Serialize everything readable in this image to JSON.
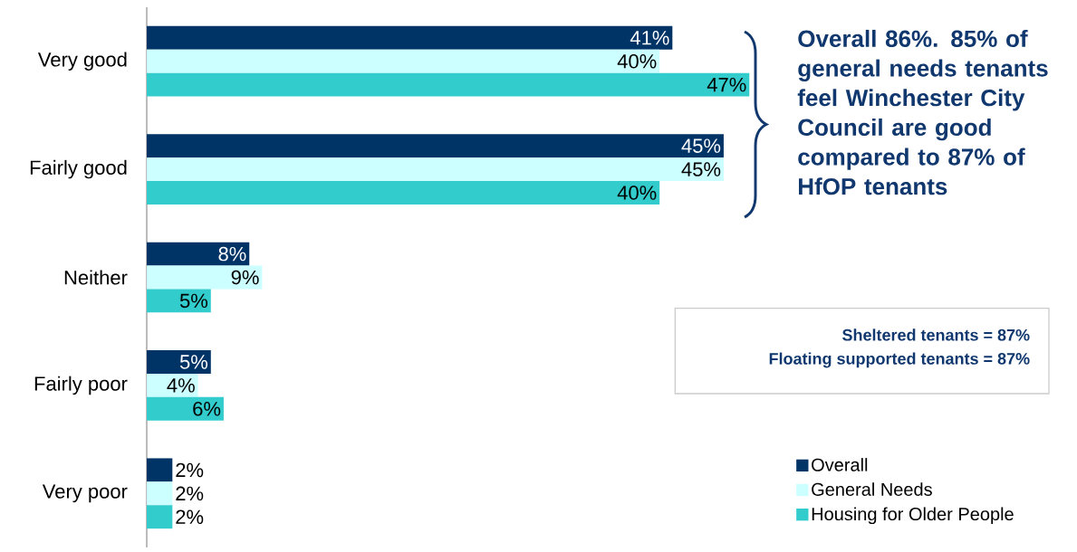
{
  "chart_data": {
    "type": "bar",
    "orientation": "horizontal",
    "categories": [
      "Very good",
      "Fairly good",
      "Neither",
      "Fairly poor",
      "Very poor"
    ],
    "series": [
      {
        "name": "Overall",
        "color": "#003366",
        "values": [
          41,
          45,
          8,
          5,
          2
        ],
        "value_labels": [
          "41%",
          "45%",
          "8%",
          "5%",
          "2%"
        ]
      },
      {
        "name": "General Needs",
        "color": "#ccffff",
        "values": [
          40,
          45,
          9,
          4,
          2
        ],
        "value_labels": [
          "40%",
          "45%",
          "9%",
          "4%",
          "2%"
        ]
      },
      {
        "name": "Housing for Older People",
        "color": "#33cccc",
        "values": [
          47,
          40,
          5,
          6,
          2
        ],
        "value_labels": [
          "47%",
          "40%",
          "5%",
          "6%",
          "2%"
        ]
      }
    ],
    "annotations": [
      "Overall 86%. 85% of general needs tenants feel Winchester City Council are good compared to 87% of HfOP tenants",
      "Sheltered tenants = 87%",
      "Floating supported tenants = 87%"
    ],
    "legend": "bottom right"
  }
}
